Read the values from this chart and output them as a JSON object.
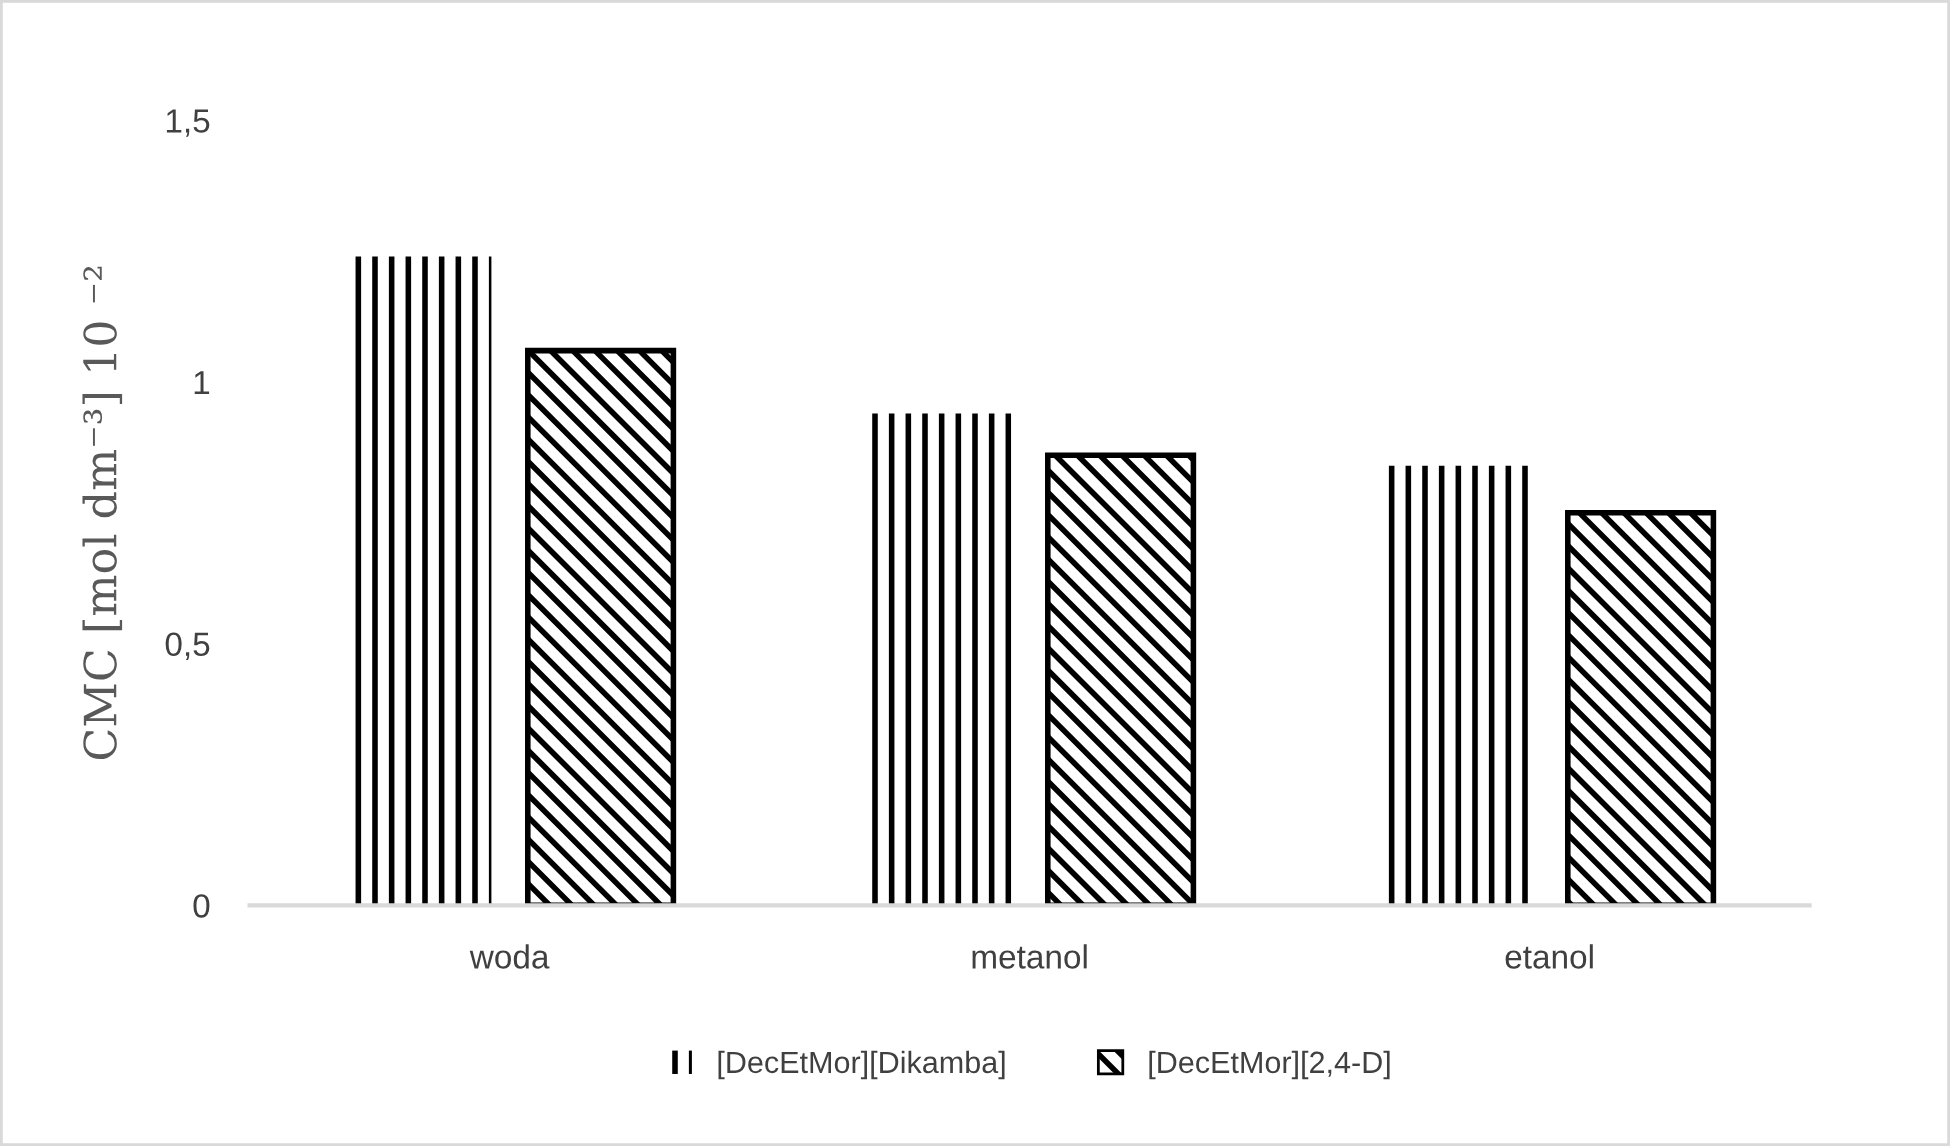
{
  "chart_data": {
    "type": "bar",
    "ylabel": "CMC [mol dm⁻³] 10 ⁻²",
    "categories": [
      "woda",
      "metanol",
      "etanol"
    ],
    "series": [
      {
        "name": "[DecEtMor][Dikamba]",
        "color": "#000000",
        "values": [
          1.24,
          0.94,
          0.84
        ]
      },
      {
        "name": "[DecEtMor][2,4-D]",
        "color": "#000000",
        "values": [
          1.06,
          0.86,
          0.75
        ]
      }
    ],
    "ylim": [
      0,
      1.5
    ],
    "yticks": [
      {
        "value": 0,
        "label": "0"
      },
      {
        "value": 0.5,
        "label": "0,5"
      },
      {
        "value": 1,
        "label": "1"
      },
      {
        "value": 1.5,
        "label": "1,5"
      }
    ],
    "grid": false,
    "legend": "bottom"
  }
}
